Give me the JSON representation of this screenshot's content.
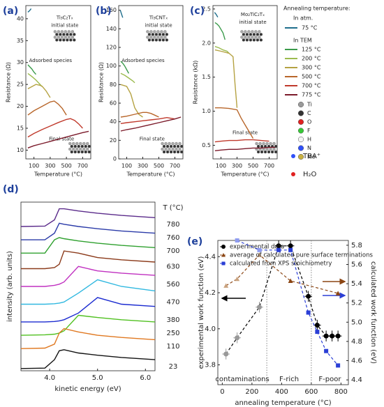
{
  "legend": {
    "title": "Annealing temperature:",
    "groups": [
      "In atm.",
      "In TEM"
    ],
    "elements": [
      {
        "name": "Ti",
        "color": "#9a9a9a"
      },
      {
        "name": "C",
        "color": "#333333"
      },
      {
        "name": "O",
        "color": "#e02020"
      },
      {
        "name": "F",
        "color": "#37c837"
      },
      {
        "name": "H",
        "color": "#f4f4f4"
      },
      {
        "name": "N",
        "color": "#3050f8"
      },
      {
        "name": "Mo",
        "color": "#c8b040"
      }
    ],
    "molecules": [
      "TBA⁺",
      "H₂O"
    ]
  },
  "chart_data": [
    {
      "type": "line",
      "label": "(a)",
      "xlabel": "Temperature (°C)",
      "ylabel": "Resistance (Ω)",
      "xlim": [
        0,
        800
      ],
      "xticks": [
        100,
        300,
        500,
        700
      ],
      "ylim": [
        8,
        43
      ],
      "yticks": [
        10,
        15,
        20,
        25,
        30,
        35,
        40
      ],
      "annotations": [
        "Ti₃C₂Tₓ",
        "initial state",
        "Adsorbed species",
        "Final state"
      ],
      "series": [
        {
          "name": "75 °C",
          "color": "#1f6e8c",
          "x": [
            25,
            45,
            65
          ],
          "values": [
            41.5,
            41.8,
            42.3
          ]
        },
        {
          "name": "125 °C",
          "color": "#3a9a4a",
          "x": [
            25,
            50,
            75,
            100,
            125
          ],
          "values": [
            29.5,
            29,
            28.5,
            27.8,
            27.3
          ]
        },
        {
          "name": "200 °C",
          "color": "#9bbb4e",
          "x": [
            25,
            75,
            125,
            175,
            200
          ],
          "values": [
            27.5,
            26.8,
            26,
            25,
            24.5
          ]
        },
        {
          "name": "300 °C",
          "color": "#b5a242",
          "x": [
            25,
            75,
            125,
            175,
            200,
            250,
            300
          ],
          "values": [
            24,
            24.5,
            25,
            24.8,
            24.6,
            23.5,
            22
          ]
        },
        {
          "name": "500 °C",
          "color": "#b8662a",
          "x": [
            25,
            100,
            200,
            300,
            350,
            400,
            450,
            500
          ],
          "values": [
            18,
            19,
            20,
            21,
            21.2,
            20.5,
            19.5,
            18
          ]
        },
        {
          "name": "700 °C",
          "color": "#c0392b",
          "x": [
            25,
            100,
            200,
            300,
            400,
            500,
            550,
            600,
            650,
            700
          ],
          "values": [
            13,
            13.8,
            14.7,
            15.5,
            16.3,
            17,
            17.2,
            16.8,
            16,
            15
          ]
        },
        {
          "name": "775 °C",
          "color": "#7b1a2a",
          "x": [
            25,
            100,
            200,
            300,
            400,
            500,
            600,
            700,
            775
          ],
          "values": [
            10.5,
            11,
            11.5,
            12,
            12.5,
            13,
            13.5,
            14,
            14.3
          ]
        }
      ]
    },
    {
      "type": "line",
      "label": "(b)",
      "xlabel": "Temperature (°C)",
      "ylabel": "Resistance (Ω)",
      "xlim": [
        0,
        800
      ],
      "xticks": [
        100,
        300,
        500,
        700
      ],
      "ylim": [
        0,
        165
      ],
      "yticks": [
        0,
        20,
        40,
        60,
        80,
        100,
        120,
        140,
        160
      ],
      "annotations": [
        "Ti₃CNTₓ",
        "initial state",
        "Adsorbed species",
        "Final state"
      ],
      "series": [
        {
          "color": "#1f6e8c",
          "x": [
            20,
            35,
            50
          ],
          "values": [
            160,
            156,
            152
          ]
        },
        {
          "color": "#3a9a4a",
          "x": [
            25,
            50,
            75,
            100,
            125
          ],
          "values": [
            105,
            103,
            100,
            96,
            92
          ]
        },
        {
          "color": "#9bbb4e",
          "x": [
            25,
            75,
            125,
            175,
            200
          ],
          "values": [
            92,
            90,
            87,
            84,
            82
          ]
        },
        {
          "color": "#b5a242",
          "x": [
            25,
            100,
            150,
            200,
            250,
            300
          ],
          "values": [
            80,
            78,
            70,
            55,
            48,
            45
          ]
        },
        {
          "color": "#b8662a",
          "x": [
            25,
            100,
            200,
            300,
            350,
            400,
            450,
            500
          ],
          "values": [
            45,
            46,
            48,
            50,
            50,
            49,
            47,
            45
          ]
        },
        {
          "color": "#c0392b",
          "x": [
            25,
            100,
            200,
            300,
            400,
            500,
            600,
            700
          ],
          "values": [
            38,
            39,
            40,
            41,
            42,
            43,
            44.5,
            43
          ]
        },
        {
          "color": "#7b1a2a",
          "x": [
            25,
            100,
            200,
            300,
            400,
            500,
            600,
            700,
            775
          ],
          "values": [
            30,
            31.5,
            33,
            35,
            37,
            39,
            41,
            43,
            45
          ]
        }
      ]
    },
    {
      "type": "line",
      "label": "(c)",
      "xlabel": "Temperature (°C)",
      "ylabel": "Resistance (kΩ)",
      "xlim": [
        0,
        800
      ],
      "xticks": [
        100,
        300,
        500,
        700
      ],
      "ylim": [
        0.3,
        2.55
      ],
      "yticks": [
        0.5,
        {
          "value": 1,
          "label": "1.0"
        },
        1.5,
        {
          "value": 2,
          "label": "2.0"
        },
        2.5
      ],
      "annotations": [
        "Mo₂TiC₂Tₓ",
        "initial state",
        "Final state"
      ],
      "series": [
        {
          "color": "#1f6e8c",
          "x": [
            20,
            40,
            60
          ],
          "values": [
            2.45,
            2.42,
            2.38
          ]
        },
        {
          "color": "#3a9a4a",
          "x": [
            25,
            50,
            75,
            100,
            125,
            150
          ],
          "values": [
            2.3,
            2.28,
            2.25,
            2.2,
            2.15,
            2.05
          ]
        },
        {
          "color": "#9bbb4e",
          "x": [
            25,
            75,
            125,
            175,
            200
          ],
          "values": [
            1.95,
            1.93,
            1.9,
            1.88,
            1.85
          ]
        },
        {
          "color": "#b5a242",
          "x": [
            25,
            100,
            200,
            250,
            275,
            300
          ],
          "values": [
            1.9,
            1.88,
            1.85,
            1.8,
            1.4,
            1.05
          ]
        },
        {
          "color": "#b8662a",
          "x": [
            25,
            100,
            200,
            300,
            350,
            400,
            450,
            500
          ],
          "values": [
            1.05,
            1.05,
            1.04,
            1.02,
            0.9,
            0.8,
            0.7,
            0.6
          ]
        },
        {
          "color": "#c0392b",
          "x": [
            25,
            100,
            200,
            300,
            400,
            500,
            600,
            700
          ],
          "values": [
            0.55,
            0.56,
            0.57,
            0.57,
            0.58,
            0.58,
            0.57,
            0.56
          ]
        },
        {
          "color": "#7b1a2a",
          "x": [
            25,
            100,
            200,
            300,
            400,
            500,
            600,
            700,
            775
          ],
          "values": [
            0.42,
            0.43,
            0.44,
            0.44,
            0.45,
            0.46,
            0.46,
            0.47,
            0.47
          ]
        }
      ]
    },
    {
      "type": "line",
      "label": "(d)",
      "xlabel": "kinetic energy (eV)",
      "ylabel": "intensity (arb. units)",
      "legend_title": "T (°C)",
      "xlim": [
        3.4,
        6.2
      ],
      "xticks": [
        {
          "value": 4,
          "label": "4.0"
        },
        {
          "value": 5,
          "label": "5.0"
        },
        {
          "value": 6,
          "label": "6.0"
        }
      ],
      "ylim": [
        0,
        7.6
      ],
      "x": [
        3.4,
        3.9,
        4.1,
        4.2,
        4.3,
        4.6,
        5.0,
        5.5,
        6.2
      ],
      "series": [
        {
          "name": "780",
          "color": "#5a2a8a",
          "values": [
            6.5,
            6.52,
            6.8,
            7.3,
            7.3,
            7.2,
            7.1,
            7.0,
            6.9
          ]
        },
        {
          "name": "760",
          "color": "#2a3aa8",
          "values": [
            5.9,
            5.9,
            6.2,
            6.65,
            6.6,
            6.5,
            6.4,
            6.3,
            6.2
          ]
        },
        {
          "name": "700",
          "color": "#2ea02e",
          "values": [
            5.3,
            5.3,
            5.9,
            6.0,
            5.95,
            5.85,
            5.75,
            5.65,
            5.55
          ]
        },
        {
          "name": "630",
          "color": "#8b3a1a",
          "values": [
            4.6,
            4.6,
            4.65,
            4.8,
            5.4,
            5.3,
            5.1,
            5.0,
            4.9
          ]
        },
        {
          "name": "560",
          "color": "#c030c0",
          "values": [
            3.8,
            3.8,
            3.85,
            3.9,
            4.0,
            4.7,
            4.5,
            4.4,
            4.3
          ]
        },
        {
          "name": "470",
          "color": "#30b8e0",
          "values": [
            3.0,
            3.0,
            3.02,
            3.05,
            3.1,
            3.5,
            4.1,
            3.8,
            3.6
          ]
        },
        {
          "name": "380",
          "color": "#1a2ad0",
          "values": [
            2.2,
            2.2,
            2.22,
            2.25,
            2.3,
            2.6,
            3.3,
            3.0,
            2.9
          ]
        },
        {
          "name": "250",
          "color": "#50c020",
          "values": [
            1.6,
            1.62,
            1.65,
            1.7,
            1.8,
            2.5,
            2.4,
            2.3,
            2.2
          ]
        },
        {
          "name": "110",
          "color": "#e07820",
          "values": [
            1.0,
            1.02,
            1.2,
            1.7,
            1.9,
            1.75,
            1.6,
            1.5,
            1.4
          ]
        },
        {
          "name": "23",
          "color": "#111111",
          "values": [
            0.1,
            0.12,
            0.5,
            0.9,
            0.95,
            0.8,
            0.7,
            0.6,
            0.5
          ]
        }
      ]
    },
    {
      "type": "scatter",
      "label": "(e)",
      "xlabel": "annealing temperature (°C)",
      "ylabel": "experimental work function (eV)",
      "y2label": "calculated work function (eV)",
      "legend": "upper left",
      "xlim": [
        -30,
        850
      ],
      "xticks": [
        0,
        200,
        400,
        600,
        800
      ],
      "ylim": [
        3.69,
        4.49
      ],
      "yticks": [
        3.8,
        {
          "value": 4,
          "label": "4.0"
        },
        4.2,
        4.4
      ],
      "y2lim": [
        4.35,
        5.85
      ],
      "y2ticks": [
        4.4,
        4.6,
        4.8,
        {
          "value": 5,
          "label": "5.0"
        },
        5.2,
        5.4,
        5.6,
        5.8
      ],
      "dividers": [
        300,
        600
      ],
      "regions": [
        "contaminations",
        "F-rich",
        "F-poor"
      ],
      "series": [
        {
          "name": "experimental data",
          "color": "#000000",
          "marker": "circle",
          "point_colors": [
            "#999999",
            "#999999",
            "#999999",
            "#000000",
            "#000000",
            "#000000",
            "#000000",
            "#000000",
            "#000000",
            "#000000"
          ],
          "x": [
            25,
            100,
            250,
            380,
            460,
            580,
            640,
            700,
            740,
            780
          ],
          "values": [
            3.86,
            3.95,
            4.12,
            4.46,
            4.46,
            4.18,
            4.02,
            3.96,
            3.96,
            3.96
          ],
          "yerr": [
            0.03,
            0.03,
            0.03,
            0.03,
            0.03,
            0.03,
            0.03,
            0.03,
            0.03,
            0.03
          ],
          "xerr": [
            25,
            25,
            25,
            25,
            25,
            25,
            25,
            25,
            25,
            25
          ]
        },
        {
          "name": "average of calculated pure surface terminations",
          "color": "#8b4513",
          "marker": "triangle",
          "axis": "y2",
          "point_colors": [
            "#c9a27e",
            "#c9a27e",
            "#c9a27e",
            "#8b4513",
            "#8b4513"
          ],
          "x": [
            25,
            100,
            250,
            460,
            780
          ],
          "values": [
            5.38,
            5.45,
            5.7,
            5.43,
            5.3
          ]
        },
        {
          "name": "calculated from XPS stoichiometry",
          "color": "#2b3fd6",
          "marker": "square",
          "axis": "y2",
          "point_colors": [
            "#8f9cf0",
            "#8f9cf0",
            "#2b3fd6",
            "#2b3fd6",
            "#2b3fd6",
            "#2b3fd6",
            "#2b3fd6",
            "#2b3fd6"
          ],
          "x": [
            100,
            250,
            380,
            460,
            580,
            640,
            700,
            780
          ],
          "values": [
            5.85,
            5.75,
            5.75,
            5.75,
            5.1,
            4.9,
            4.7,
            4.55
          ]
        }
      ]
    }
  ]
}
